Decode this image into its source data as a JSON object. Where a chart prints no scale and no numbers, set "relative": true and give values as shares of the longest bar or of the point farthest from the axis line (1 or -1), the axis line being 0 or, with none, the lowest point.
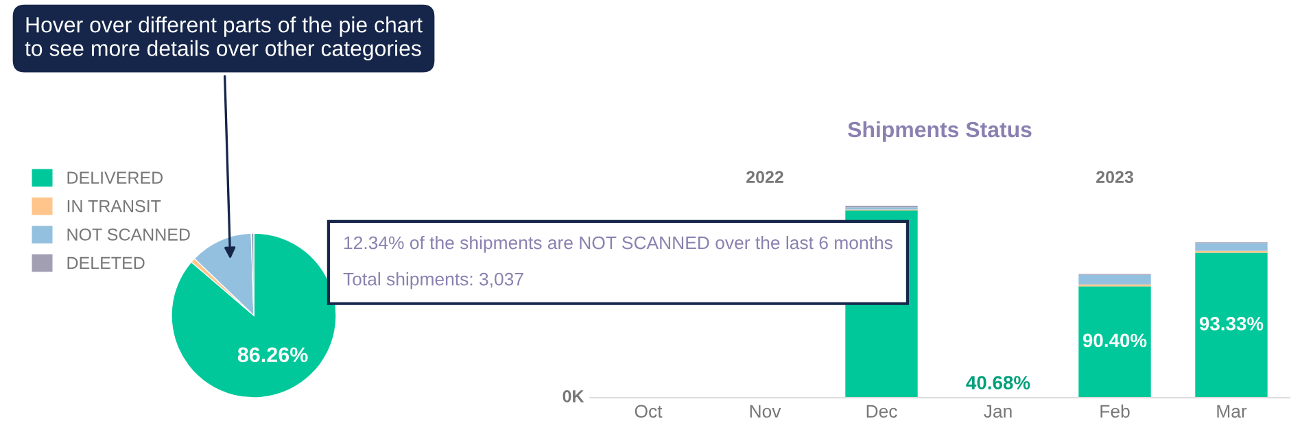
{
  "chart_data": [
    {
      "type": "pie",
      "categories": [
        "DELIVERED",
        "IN TRANSIT",
        "NOT SCANNED",
        "DELETED"
      ],
      "values": [
        86.26,
        0.9,
        12.34,
        0.5
      ],
      "colors": [
        "#00c89a",
        "#ffc58a",
        "#93c0df",
        "#a39fb3"
      ],
      "value_labels": [
        "86.26%",
        null,
        null,
        null
      ],
      "legend": "left",
      "annotations": [
        "Hover over different parts of the pie chart to see more details over other categories",
        "12.34% of the shipments are NOT SCANNED over the last 6 months",
        "Total shipments: 3,037"
      ]
    },
    {
      "type": "bar",
      "title": "Shipments Status",
      "relative": true,
      "stacked": true,
      "categories": [
        "Oct",
        "Nov",
        "Dec",
        "Jan",
        "Feb",
        "Mar"
      ],
      "series": [
        {
          "color": "#00c89a",
          "values": [
            null,
            null,
            0.975,
            null,
            0.58,
            0.755
          ]
        },
        {
          "color": "#ffc58a",
          "values": [
            null,
            null,
            0.005,
            null,
            0.01,
            0.01
          ]
        },
        {
          "color": "#93c0df",
          "values": [
            null,
            null,
            0.012,
            null,
            0.05,
            0.04
          ]
        },
        {
          "color": "#a39fb3",
          "values": [
            null,
            null,
            0.008,
            null,
            0.005,
            0.005
          ]
        }
      ],
      "annotations": [
        "2022",
        "2023",
        "0K",
        "40.68%",
        "90.40%",
        "93.33%"
      ]
    }
  ]
}
